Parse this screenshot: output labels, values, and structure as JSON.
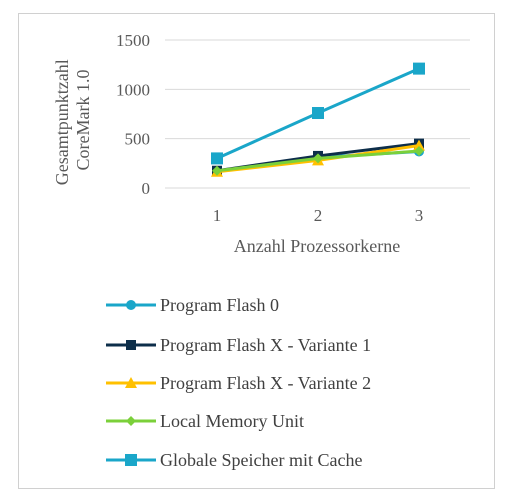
{
  "chart_data": {
    "type": "line",
    "xlabel": "Anzahl Prozessorkerne",
    "ylabel": [
      "Gesamtpunktzahl",
      "CoreMark 1.0"
    ],
    "categories": [
      "1",
      "2",
      "3"
    ],
    "ylim": [
      0,
      1500
    ],
    "yticks": [
      0,
      500,
      1000,
      1500
    ],
    "grid": "horizontal",
    "legend_position": "bottom",
    "series": [
      {
        "name": "Program Flash 0",
        "values": [
          170,
          310,
          370
        ],
        "color": "#1aa6c9",
        "marker": "circle"
      },
      {
        "name": "Program Flash X - Variante 1",
        "values": [
          175,
          325,
          450
        ],
        "color": "#0d2e4a",
        "marker": "square"
      },
      {
        "name": "Program Flash X - Variante 2",
        "values": [
          165,
          280,
          430
        ],
        "color": "#ffc000",
        "marker": "triangle"
      },
      {
        "name": "Local Memory Unit",
        "values": [
          175,
          300,
          375
        ],
        "color": "#7bd03a",
        "marker": "diamond"
      },
      {
        "name": "Globale Speicher mit Cache",
        "values": [
          300,
          760,
          1210
        ],
        "color": "#1aa6c9",
        "marker": "square-large"
      }
    ]
  }
}
